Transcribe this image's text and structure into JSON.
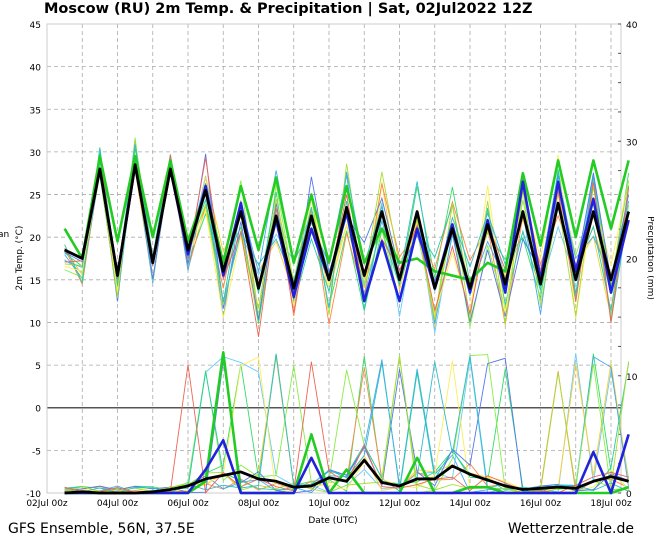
{
  "chart_data": {
    "type": "line",
    "title": "Moscow  (RU)  2m Temp. & Precipitation | Sat, 02Jul2022 12Z",
    "xlabel": "Date (UTC)",
    "ylabel": "2m Temp. (°C)",
    "ylabel_left_clipped": "an",
    "y2label": "Precipitation (mm)",
    "footer_left": "GFS Ensemble, 56N, 37.5E",
    "footer_right": "Wetterzentrale.de",
    "ylim": [
      -10,
      45
    ],
    "y2lim": [
      0,
      40
    ],
    "yticks": [
      "45",
      "40",
      "35",
      "30",
      "25",
      "20",
      "15",
      "10",
      "5",
      "0",
      "-5",
      "-10"
    ],
    "y2ticks": [
      "40",
      "30",
      "20",
      "10",
      "0"
    ],
    "xticks": [
      "02Jul 00z",
      "04Jul 00z",
      "06Jul 00z",
      "08Jul 00z",
      "10Jul 00z",
      "12Jul 00z",
      "14Jul 00z",
      "16Jul 00z",
      "18Jul 00z"
    ],
    "x_start": "02Jul 12z",
    "x_step_hours": 12,
    "grid": true,
    "colors": {
      "mean": "#000000",
      "control": "#22cc22",
      "operational": "#2222dd",
      "zero_line": "#555555"
    },
    "series": [
      {
        "name": "Ensemble mean temp",
        "values": [
          18.5,
          17.5,
          28,
          15.5,
          28.5,
          17,
          28,
          18.5,
          25.5,
          16,
          23,
          14,
          22.5,
          14,
          22.5,
          15,
          23.5,
          15.5,
          23,
          15,
          23,
          14,
          21,
          14,
          21.5,
          14.5,
          23,
          14.5,
          24,
          15,
          23,
          15,
          23
        ]
      },
      {
        "name": "Control temp",
        "values": [
          21,
          17.5,
          29.5,
          19.5,
          29.5,
          20,
          29,
          19.5,
          25.5,
          17,
          26,
          18.5,
          27,
          17,
          25,
          17,
          26,
          17,
          21,
          17,
          17.5,
          16,
          15.5,
          15,
          17,
          16,
          27.5,
          19,
          29,
          20,
          29,
          21,
          29
        ]
      },
      {
        "name": "Operational temp",
        "values": [
          18.5,
          17.5,
          28,
          15.5,
          28.5,
          17,
          28,
          18,
          26,
          15.5,
          24,
          14,
          22,
          13,
          21,
          15,
          23,
          12.5,
          19.5,
          12.5,
          21,
          14,
          21.5,
          13.5,
          22,
          13.5,
          26.5,
          15,
          26.5,
          16,
          24.5,
          13.5,
          22
        ]
      },
      {
        "name": "Ensemble mean precip",
        "axis": "y2",
        "values": [
          0,
          0.1,
          0,
          0,
          0,
          0.1,
          0.3,
          0.6,
          1.2,
          1.5,
          1.8,
          1.2,
          1.0,
          0.5,
          0.6,
          1.3,
          1.0,
          2.8,
          0.9,
          0.6,
          1.2,
          1.2,
          2.3,
          1.6,
          1.1,
          0.6,
          0.3,
          0.4,
          0.5,
          0.4,
          1.0,
          1.4,
          1.0
        ]
      },
      {
        "name": "Control precip",
        "axis": "y2",
        "values": [
          0,
          0,
          0,
          0,
          0,
          0,
          0,
          0,
          1,
          12,
          0,
          0,
          0,
          0,
          5,
          0,
          2,
          0,
          0,
          0,
          3,
          0,
          0,
          0.5,
          0.5,
          0,
          0,
          0,
          0,
          0,
          0,
          0,
          0.5
        ]
      },
      {
        "name": "Operational precip",
        "axis": "y2",
        "values": [
          0,
          0,
          0,
          0,
          0,
          0,
          0,
          0,
          2,
          4.5,
          0,
          0,
          0,
          0,
          3,
          0,
          0,
          0,
          0,
          0,
          0,
          0,
          0,
          0,
          0,
          0,
          0,
          0,
          0,
          0,
          3.5,
          0,
          5
        ]
      }
    ]
  }
}
